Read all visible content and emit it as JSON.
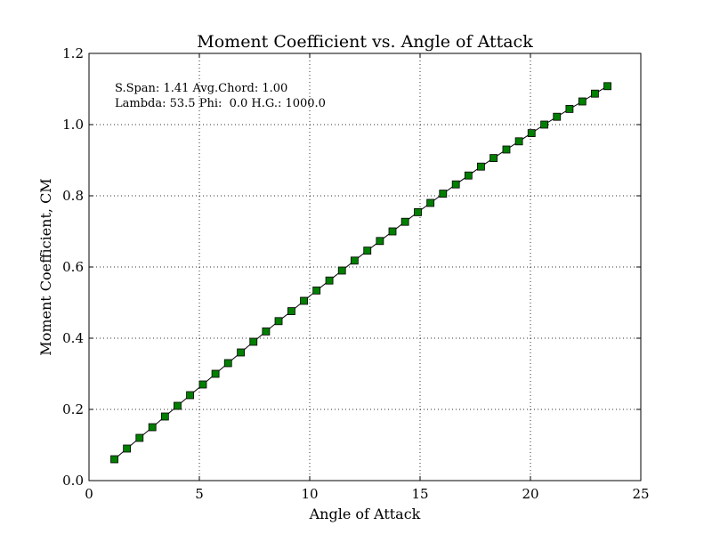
{
  "chart_data": {
    "type": "line",
    "title": "Moment Coefficient vs. Angle of Attack",
    "xlabel": "Angle of Attack",
    "ylabel": "Moment Coefficient, CM",
    "xlim": [
      0,
      25
    ],
    "ylim": [
      0.0,
      1.2
    ],
    "x_ticks": [
      "0",
      "5",
      "10",
      "15",
      "20",
      "25"
    ],
    "y_ticks": [
      "0.0",
      "0.2",
      "0.4",
      "0.6",
      "0.8",
      "1.0",
      "1.2"
    ],
    "grid": true,
    "annotations": [
      "S.Span: 1.41 Avg.Chord: 1.00",
      "Lambda: 53.5 Phi:  0.0 H.G.: 1000.0"
    ],
    "series": [
      {
        "marker": "square",
        "color": "#007f00",
        "x": [
          1.15,
          1.72,
          2.29,
          2.87,
          3.44,
          4.01,
          4.58,
          5.16,
          5.73,
          6.3,
          6.88,
          7.45,
          8.02,
          8.59,
          9.17,
          9.74,
          10.31,
          10.89,
          11.46,
          12.03,
          12.61,
          13.18,
          13.75,
          14.32,
          14.9,
          15.47,
          16.04,
          16.62,
          17.19,
          17.76,
          18.33,
          18.91,
          19.48,
          20.05,
          20.63,
          21.2,
          21.77,
          22.35,
          22.92,
          23.49
        ],
        "y": [
          0.06,
          0.09,
          0.12,
          0.15,
          0.18,
          0.21,
          0.24,
          0.27,
          0.3,
          0.33,
          0.36,
          0.39,
          0.419,
          0.448,
          0.476,
          0.505,
          0.534,
          0.562,
          0.59,
          0.618,
          0.646,
          0.673,
          0.7,
          0.727,
          0.754,
          0.78,
          0.806,
          0.832,
          0.857,
          0.882,
          0.906,
          0.93,
          0.953,
          0.976,
          1.0,
          1.022,
          1.044,
          1.065,
          1.087,
          1.108
        ]
      }
    ]
  }
}
